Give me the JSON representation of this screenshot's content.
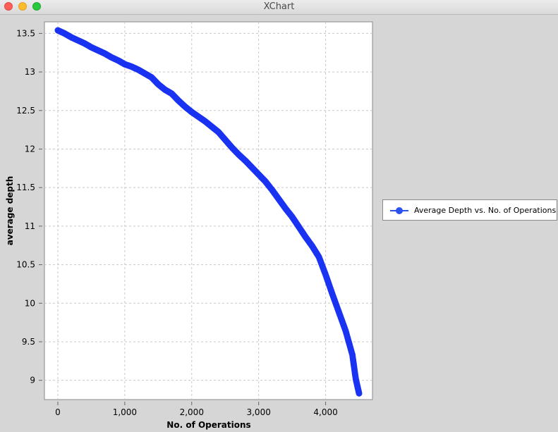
{
  "window": {
    "title": "XChart"
  },
  "chart_data": {
    "type": "scatter",
    "title": "",
    "xlabel": "No. of Operations",
    "ylabel": "average depth",
    "xlim": [
      -200,
      4700
    ],
    "ylim": [
      8.75,
      13.65
    ],
    "x_ticks": [
      0,
      1000,
      2000,
      3000,
      4000
    ],
    "x_tick_labels": [
      "0",
      "1,000",
      "2,000",
      "3,000",
      "4,000"
    ],
    "y_ticks": [
      9,
      9.5,
      10,
      10.5,
      11,
      11.5,
      12,
      12.5,
      13,
      13.5
    ],
    "y_tick_labels": [
      "9",
      "9.5",
      "10",
      "10.5",
      "11",
      "11.5",
      "12",
      "12.5",
      "13",
      "13.5"
    ],
    "grid": true,
    "legend": {
      "placement": "outside-right"
    },
    "series": [
      {
        "name": "Average Depth vs. No. of Operations",
        "color": "#1a33f2",
        "marker": "circle",
        "x": [
          0,
          100,
          200,
          300,
          400,
          500,
          600,
          700,
          800,
          900,
          1000,
          1100,
          1200,
          1300,
          1400,
          1500,
          1600,
          1700,
          1800,
          1900,
          2000,
          2100,
          2200,
          2300,
          2400,
          2500,
          2600,
          2700,
          2800,
          2900,
          3000,
          3100,
          3200,
          3300,
          3400,
          3500,
          3600,
          3700,
          3800,
          3900,
          4000,
          4100,
          4200,
          4300,
          4400,
          4450,
          4500
        ],
        "y": [
          13.54,
          13.5,
          13.45,
          13.41,
          13.37,
          13.32,
          13.28,
          13.24,
          13.19,
          13.15,
          13.1,
          13.07,
          13.03,
          12.98,
          12.93,
          12.84,
          12.77,
          12.72,
          12.63,
          12.55,
          12.48,
          12.42,
          12.36,
          12.29,
          12.22,
          12.12,
          12.02,
          11.93,
          11.85,
          11.76,
          11.67,
          11.58,
          11.47,
          11.35,
          11.23,
          11.12,
          10.99,
          10.86,
          10.74,
          10.6,
          10.37,
          10.12,
          9.88,
          9.64,
          9.33,
          9.02,
          8.83
        ]
      }
    ]
  }
}
